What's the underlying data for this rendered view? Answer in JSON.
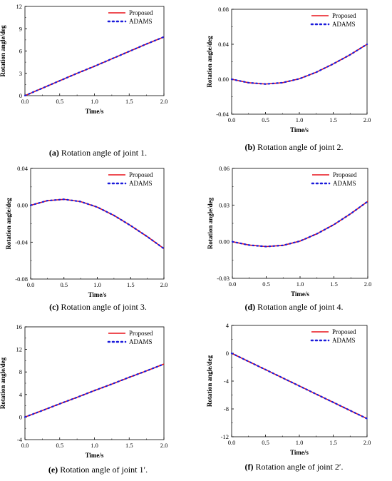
{
  "colors": {
    "proposed": "#e8141b",
    "adams": "#1a1adb",
    "axis": "#000000"
  },
  "chart_data": [
    {
      "id": "a",
      "type": "line",
      "caption_label": "(a)",
      "caption_text": " Rotation angle of joint 1.",
      "xlabel": "Time/s",
      "ylabel": "Rotation angle/deg",
      "xlim": [
        0,
        2
      ],
      "ylim": [
        0,
        12
      ],
      "xticks": [
        "0.0",
        "0.5",
        "1.0",
        "1.5",
        "2.0"
      ],
      "xtick_values": [
        0,
        0.5,
        1,
        1.5,
        2
      ],
      "yticks": [
        "0",
        "3",
        "6",
        "9",
        "12"
      ],
      "ytick_values": [
        0,
        3,
        6,
        9,
        12
      ],
      "legend": [
        "Proposed",
        "ADAMS"
      ],
      "legend_position": "top-right",
      "series": [
        {
          "name": "Proposed",
          "style": "solid",
          "x": [
            0,
            0.25,
            0.5,
            0.75,
            1.0,
            1.25,
            1.5,
            1.75,
            2.0
          ],
          "y": [
            0,
            1.0,
            2.0,
            3.0,
            3.95,
            4.95,
            5.95,
            6.95,
            7.9
          ]
        },
        {
          "name": "ADAMS",
          "style": "dotted",
          "x": [
            0,
            0.25,
            0.5,
            0.75,
            1.0,
            1.25,
            1.5,
            1.75,
            2.0
          ],
          "y": [
            0,
            1.0,
            2.0,
            3.0,
            3.95,
            4.95,
            5.95,
            6.95,
            7.9
          ]
        }
      ]
    },
    {
      "id": "b",
      "type": "line",
      "caption_label": "(b)",
      "caption_text": " Rotation angle of joint 2.",
      "xlabel": "Time/s",
      "ylabel": "Rotation angle/deg",
      "xlim": [
        0,
        2
      ],
      "ylim": [
        -0.04,
        0.08
      ],
      "xticks": [
        "0.0",
        "0.5",
        "1.0",
        "1.5",
        "2.0"
      ],
      "xtick_values": [
        0,
        0.5,
        1,
        1.5,
        2
      ],
      "yticks": [
        "-0.04",
        "0.00",
        "0.04",
        "0.08"
      ],
      "ytick_values": [
        -0.04,
        0,
        0.04,
        0.08
      ],
      "legend": [
        "Proposed",
        "ADAMS"
      ],
      "legend_position": "top-right",
      "series": [
        {
          "name": "Proposed",
          "style": "solid",
          "x": [
            0,
            0.25,
            0.5,
            0.75,
            1.0,
            1.25,
            1.5,
            1.75,
            2.0
          ],
          "y": [
            0,
            -0.004,
            -0.0055,
            -0.004,
            0.0005,
            0.008,
            0.0175,
            0.028,
            0.04
          ]
        },
        {
          "name": "ADAMS",
          "style": "dotted",
          "x": [
            0,
            0.25,
            0.5,
            0.75,
            1.0,
            1.25,
            1.5,
            1.75,
            2.0
          ],
          "y": [
            0,
            -0.004,
            -0.0055,
            -0.004,
            0.0005,
            0.008,
            0.0175,
            0.028,
            0.04
          ]
        }
      ]
    },
    {
      "id": "c",
      "type": "line",
      "caption_label": "(c)",
      "caption_text": " Rotation angle of joint 3.",
      "xlabel": "Time/s",
      "ylabel": "Rotation angle/deg",
      "xlim": [
        0,
        2
      ],
      "ylim": [
        -0.08,
        0.04
      ],
      "xticks": [
        "0.0",
        "0.5",
        "1.0",
        "1.5",
        "2.0"
      ],
      "xtick_values": [
        0,
        0.5,
        1,
        1.5,
        2
      ],
      "yticks": [
        "-0.08",
        "-0.04",
        "0.00",
        "0.04"
      ],
      "ytick_values": [
        -0.08,
        -0.04,
        0,
        0.04
      ],
      "legend": [
        "Proposed",
        "ADAMS"
      ],
      "legend_position": "top-right",
      "series": [
        {
          "name": "Proposed",
          "style": "solid",
          "x": [
            0,
            0.25,
            0.5,
            0.75,
            1.0,
            1.25,
            1.5,
            1.75,
            2.0
          ],
          "y": [
            0,
            0.005,
            0.0065,
            0.004,
            -0.002,
            -0.011,
            -0.022,
            -0.034,
            -0.047
          ]
        },
        {
          "name": "ADAMS",
          "style": "dotted",
          "x": [
            0,
            0.25,
            0.5,
            0.75,
            1.0,
            1.25,
            1.5,
            1.75,
            2.0
          ],
          "y": [
            0,
            0.005,
            0.0065,
            0.004,
            -0.002,
            -0.011,
            -0.022,
            -0.034,
            -0.047
          ]
        }
      ]
    },
    {
      "id": "d",
      "type": "line",
      "caption_label": "(d)",
      "caption_text": " Rotation angle of joint 4.",
      "xlabel": "Time/s",
      "ylabel": "Rotation angle/deg",
      "xlim": [
        0,
        2
      ],
      "ylim": [
        -0.03,
        0.06
      ],
      "xticks": [
        "0.0",
        "0.5",
        "1.0",
        "1.5",
        "2.0"
      ],
      "xtick_values": [
        0,
        0.5,
        1,
        1.5,
        2
      ],
      "yticks": [
        "-0.03",
        "0.00",
        "0.03",
        "0.06"
      ],
      "ytick_values": [
        -0.03,
        0,
        0.03,
        0.06
      ],
      "legend": [
        "Proposed",
        "ADAMS"
      ],
      "legend_position": "top-right",
      "series": [
        {
          "name": "Proposed",
          "style": "solid",
          "x": [
            0,
            0.25,
            0.5,
            0.75,
            1.0,
            1.25,
            1.5,
            1.75,
            2.0
          ],
          "y": [
            0,
            -0.0028,
            -0.004,
            -0.003,
            0.0005,
            0.0065,
            0.014,
            0.023,
            0.033
          ]
        },
        {
          "name": "ADAMS",
          "style": "dotted",
          "x": [
            0,
            0.25,
            0.5,
            0.75,
            1.0,
            1.25,
            1.5,
            1.75,
            2.0
          ],
          "y": [
            0,
            -0.0028,
            -0.004,
            -0.003,
            0.0005,
            0.0065,
            0.014,
            0.023,
            0.033
          ]
        }
      ]
    },
    {
      "id": "e",
      "type": "line",
      "caption_label": "(e)",
      "caption_text": " Rotation angle of joint  1′.",
      "xlabel": "Time/s",
      "ylabel": "Rotation angle/deg",
      "xlim": [
        0,
        2
      ],
      "ylim": [
        -4,
        16
      ],
      "xticks": [
        "0.0",
        "0.5",
        "1.0",
        "1.5",
        "2.0"
      ],
      "xtick_values": [
        0,
        0.5,
        1,
        1.5,
        2
      ],
      "yticks": [
        "-4",
        "0",
        "4",
        "8",
        "12",
        "16"
      ],
      "ytick_values": [
        -4,
        0,
        4,
        8,
        12,
        16
      ],
      "legend": [
        "Proposed",
        "ADAMS"
      ],
      "legend_position": "top-right",
      "series": [
        {
          "name": "Proposed",
          "style": "solid",
          "x": [
            0,
            0.25,
            0.5,
            0.75,
            1.0,
            1.25,
            1.5,
            1.75,
            2.0
          ],
          "y": [
            0,
            1.15,
            2.35,
            3.5,
            4.7,
            5.85,
            7.05,
            8.2,
            9.4
          ]
        },
        {
          "name": "ADAMS",
          "style": "dotted",
          "x": [
            0,
            0.25,
            0.5,
            0.75,
            1.0,
            1.25,
            1.5,
            1.75,
            2.0
          ],
          "y": [
            0,
            1.15,
            2.35,
            3.5,
            4.7,
            5.85,
            7.05,
            8.2,
            9.4
          ]
        }
      ]
    },
    {
      "id": "f",
      "type": "line",
      "caption_label": "(f)",
      "caption_text": " Rotation angle of joint  2′.",
      "xlabel": "Time/s",
      "ylabel": "Rotation angle/deg",
      "xlim": [
        0,
        2
      ],
      "ylim": [
        -12,
        4
      ],
      "xticks": [
        "0.0",
        "0.5",
        "1.0",
        "1.5",
        "2.0"
      ],
      "xtick_values": [
        0,
        0.5,
        1,
        1.5,
        2
      ],
      "yticks": [
        "-12",
        "-8",
        "-4",
        "0",
        "4"
      ],
      "ytick_values": [
        -12,
        -8,
        -4,
        0,
        4
      ],
      "legend": [
        "Proposed",
        "ADAMS"
      ],
      "legend_position": "top-right",
      "series": [
        {
          "name": "Proposed",
          "style": "solid",
          "x": [
            0,
            0.25,
            0.5,
            0.75,
            1.0,
            1.25,
            1.5,
            1.75,
            2.0
          ],
          "y": [
            0,
            -1.18,
            -2.35,
            -3.53,
            -4.7,
            -5.88,
            -7.05,
            -8.23,
            -9.4
          ]
        },
        {
          "name": "ADAMS",
          "style": "dotted",
          "x": [
            0,
            0.25,
            0.5,
            0.75,
            1.0,
            1.25,
            1.5,
            1.75,
            2.0
          ],
          "y": [
            0,
            -1.18,
            -2.35,
            -3.53,
            -4.7,
            -5.88,
            -7.05,
            -8.23,
            -9.4
          ]
        }
      ]
    }
  ]
}
